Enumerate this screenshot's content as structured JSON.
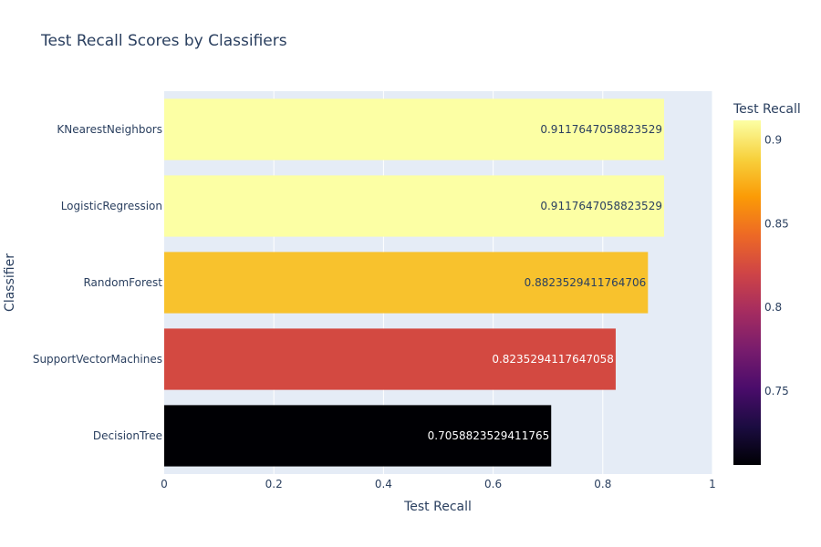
{
  "chart_data": {
    "type": "bar",
    "orientation": "horizontal",
    "title": "Test Recall Scores by Classifiers",
    "xlabel": "Test Recall",
    "ylabel": "Classifier",
    "xlim": [
      0,
      1
    ],
    "x_ticks": [
      "0",
      "0.2",
      "0.4",
      "0.6",
      "0.8",
      "1"
    ],
    "x_tick_values": [
      0,
      0.2,
      0.4,
      0.6,
      0.8,
      1
    ],
    "grid": true,
    "categories": [
      "KNearestNeighbors",
      "LogisticRegression",
      "RandomForest",
      "SupportVectorMachines",
      "DecisionTree"
    ],
    "values": [
      0.9117647058823529,
      0.9117647058823529,
      0.8823529411764706,
      0.8235294117647058,
      0.7058823529411765
    ],
    "value_labels": [
      "0.9117647058823529",
      "0.9117647058823529",
      "0.8823529411764706",
      "0.8235294117647058",
      "0.7058823529411765"
    ],
    "colorscale": "inferno",
    "colorbar": {
      "title": "Test Recall",
      "range": [
        0.7058823529411765,
        0.9117647058823529
      ],
      "ticks": [
        "0.75",
        "0.8",
        "0.85",
        "0.9"
      ],
      "tick_values": [
        0.75,
        0.8,
        0.85,
        0.9
      ]
    },
    "colors": {
      "plot_background": "#e5ecf6",
      "text": "#2a3f5f"
    }
  }
}
